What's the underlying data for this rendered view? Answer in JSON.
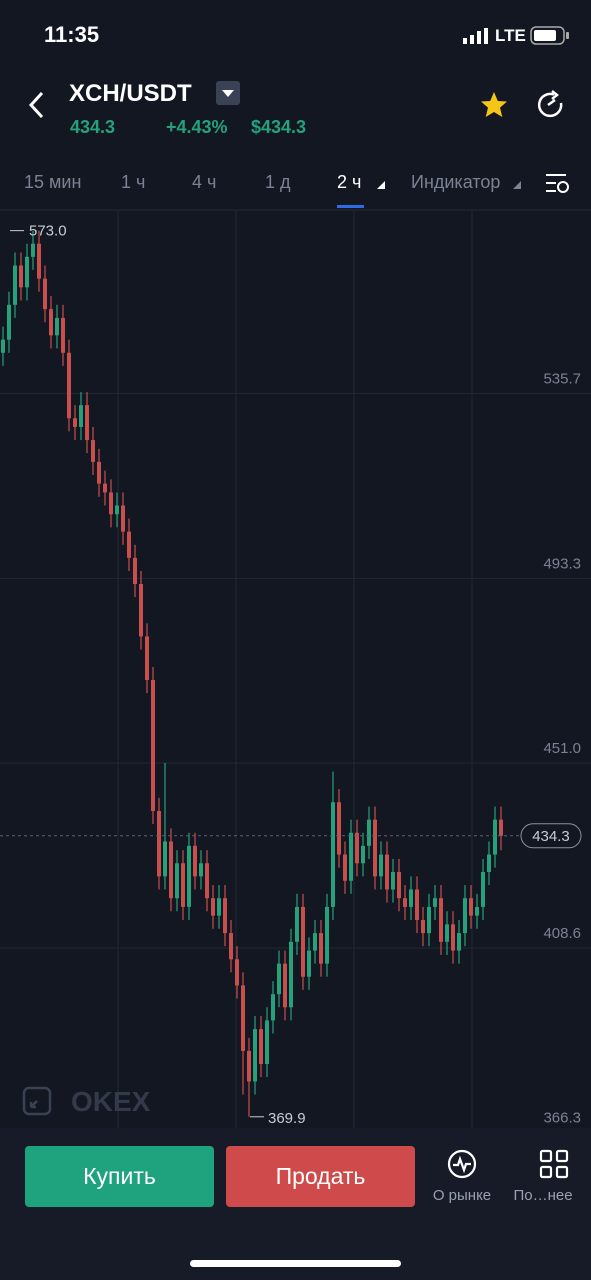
{
  "status_bar": {
    "time": "11:35",
    "network": "LTE"
  },
  "header": {
    "pair": "XCH/USDT",
    "last_price": "434.3",
    "change": "+4.43%",
    "usd_price": "$434.3"
  },
  "tabs": [
    "15 мин",
    "1 ч",
    "4 ч",
    "1 д",
    "2 ч",
    "Индикатор"
  ],
  "chart_data": {
    "type": "candlestick",
    "up_color": "#25a17b",
    "down_color": "#c94f4f",
    "open": [
      545,
      548,
      556,
      565,
      560,
      567,
      570,
      562,
      555,
      549,
      553,
      545,
      530,
      528,
      533,
      525,
      520,
      515,
      513,
      508,
      510,
      504,
      498,
      492,
      480,
      470,
      440,
      425,
      433,
      420,
      428,
      418,
      432,
      425,
      428,
      420,
      416,
      420,
      412,
      406,
      400,
      385,
      378,
      390,
      382,
      392,
      398,
      405,
      395,
      410,
      418,
      402,
      408,
      412,
      405,
      418,
      442,
      430,
      424,
      435,
      428,
      432,
      438,
      425,
      430,
      422,
      426,
      420,
      418,
      422,
      415,
      412,
      418,
      420,
      410,
      414,
      408,
      412,
      420,
      416,
      418,
      426,
      430,
      438
    ],
    "high": [
      551,
      559,
      568,
      568,
      570,
      573,
      573,
      565,
      558,
      556,
      556,
      548,
      533,
      536,
      536,
      528,
      523,
      518,
      516,
      513,
      513,
      507,
      501,
      495,
      483,
      473,
      443,
      451,
      436,
      431,
      431,
      435,
      435,
      431,
      431,
      423,
      423,
      423,
      415,
      409,
      403,
      388,
      393,
      393,
      395,
      401,
      408,
      408,
      413,
      421,
      421,
      411,
      415,
      415,
      421,
      449,
      445,
      433,
      438,
      438,
      435,
      441,
      441,
      433,
      433,
      429,
      429,
      423,
      425,
      425,
      418,
      421,
      423,
      423,
      417,
      417,
      415,
      423,
      423,
      421,
      429,
      433,
      441,
      441
    ],
    "low": [
      542,
      545,
      553,
      557,
      557,
      564,
      559,
      552,
      546,
      546,
      542,
      527,
      525,
      525,
      522,
      517,
      512,
      510,
      505,
      505,
      501,
      495,
      489,
      477,
      467,
      437,
      422,
      422,
      417,
      417,
      415,
      415,
      422,
      422,
      417,
      413,
      413,
      409,
      403,
      397,
      375,
      369.9,
      375,
      379,
      379,
      389,
      395,
      392,
      392,
      407,
      399,
      399,
      405,
      402,
      402,
      415,
      427,
      421,
      421,
      425,
      425,
      429,
      422,
      422,
      419,
      419,
      417,
      415,
      415,
      412,
      409,
      409,
      415,
      407,
      407,
      405,
      405,
      409,
      413,
      413,
      415,
      423,
      427,
      431
    ],
    "close": [
      548,
      556,
      565,
      560,
      567,
      570,
      562,
      555,
      549,
      553,
      545,
      530,
      528,
      533,
      525,
      520,
      515,
      513,
      508,
      510,
      504,
      498,
      492,
      480,
      470,
      440,
      425,
      433,
      420,
      428,
      418,
      432,
      425,
      428,
      420,
      416,
      420,
      412,
      406,
      400,
      385,
      378,
      390,
      382,
      392,
      398,
      405,
      395,
      410,
      418,
      402,
      408,
      412,
      405,
      418,
      442,
      430,
      424,
      435,
      428,
      432,
      438,
      425,
      430,
      422,
      426,
      420,
      418,
      422,
      415,
      412,
      418,
      420,
      410,
      414,
      408,
      412,
      420,
      416,
      418,
      426,
      430,
      438,
      434.3
    ],
    "ylim": [
      366.3,
      577.5
    ],
    "yticks": [
      366.3,
      408.6,
      {
        "value": 451,
        "label": "451.0"
      },
      493.3,
      535.7
    ],
    "grid": true,
    "max_marker": {
      "value": 573,
      "label": "573.0"
    },
    "min_marker": {
      "value": 369.9,
      "label": "369.9"
    },
    "current_price": {
      "value": 434.3,
      "label": "434.3"
    },
    "watermark": "OKEX"
  },
  "actions": {
    "buy": "Купить",
    "sell": "Продать",
    "market": "О рынке",
    "more": "По…нее"
  }
}
